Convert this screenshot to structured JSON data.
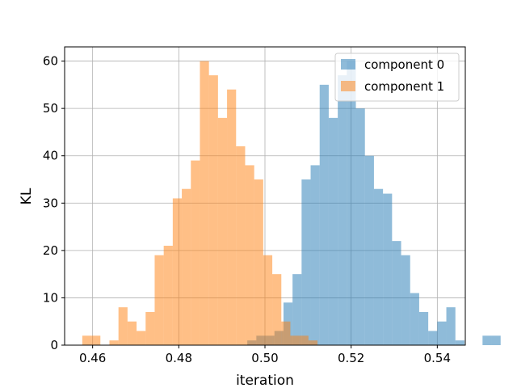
{
  "chart_data": {
    "type": "bar",
    "subtype": "histogram",
    "title": "",
    "xlabel": "iteration",
    "ylabel": "KL",
    "xlim": [
      0.4535,
      0.5465
    ],
    "ylim": [
      0,
      63
    ],
    "xticks": [
      0.46,
      0.48,
      0.5,
      0.52,
      0.54
    ],
    "xtick_labels": [
      "0.46",
      "0.48",
      "0.50",
      "0.52",
      "0.54"
    ],
    "yticks": [
      0,
      10,
      20,
      30,
      40,
      50,
      60
    ],
    "ytick_labels": [
      "0",
      "10",
      "20",
      "30",
      "40",
      "50",
      "60"
    ],
    "grid": true,
    "legend_position": "upper right",
    "series": [
      {
        "name": "component 0",
        "color": "#1f77b4",
        "alpha": 0.5,
        "bin_start": 0.4959,
        "bin_width": 0.0021,
        "counts": [
          1,
          2,
          2,
          3,
          9,
          15,
          35,
          38,
          55,
          48,
          57,
          60,
          50,
          40,
          33,
          32,
          22,
          19,
          11,
          7,
          3,
          5,
          8,
          1,
          0,
          0,
          2,
          2
        ]
      },
      {
        "name": "component 1",
        "color": "#ff7f0e",
        "alpha": 0.5,
        "bin_start": 0.4576,
        "bin_width": 0.0021,
        "counts": [
          2,
          2,
          0,
          1,
          8,
          5,
          3,
          7,
          19,
          21,
          31,
          33,
          39,
          60,
          57,
          48,
          54,
          42,
          38,
          35,
          19,
          15,
          5,
          2,
          2,
          1
        ]
      }
    ]
  }
}
